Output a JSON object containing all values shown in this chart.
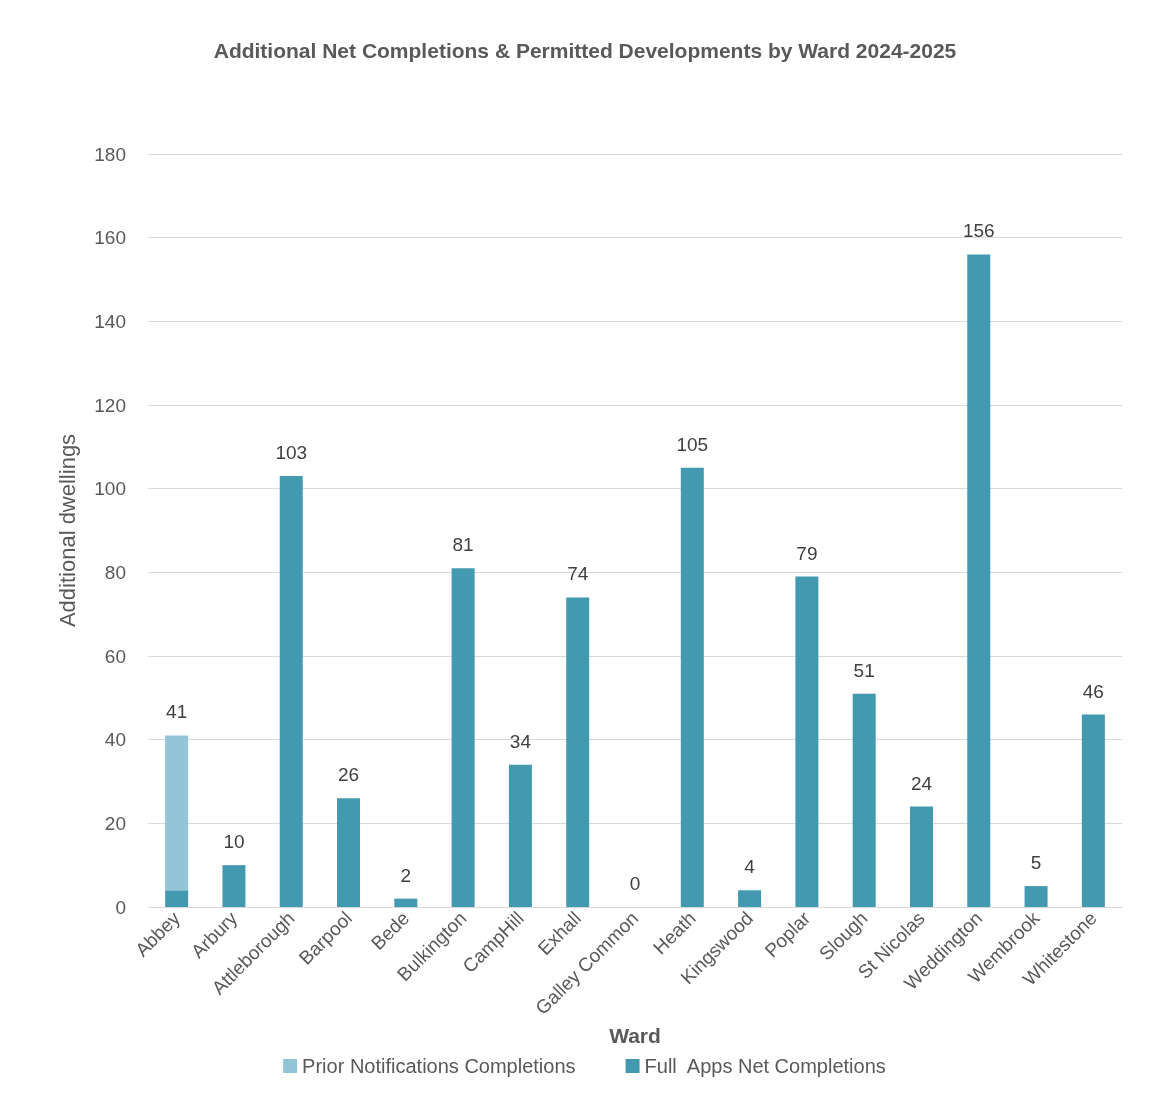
{
  "chart_data": {
    "type": "bar",
    "title": "Additional Net Completions & Permitted Developments by Ward 2024-2025",
    "xlabel": "Ward",
    "ylabel": "Additional dwellings",
    "categories": [
      "Abbey",
      "Arbury",
      "Attleborough",
      "Barpool",
      "Bede",
      "Bulkington",
      "CampHill",
      "Exhall",
      "Galley Common",
      "Heath",
      "Kingswood",
      "Poplar",
      "Slough",
      "St Nicolas",
      "Weddington",
      "Wembrook",
      "Whitestone"
    ],
    "stacked": true,
    "series": [
      {
        "name": "Full  Apps Net Completions",
        "color": "#4399b0",
        "values": [
          4,
          10,
          103,
          26,
          2,
          81,
          34,
          74,
          0,
          105,
          4,
          79,
          51,
          24,
          156,
          5,
          46
        ]
      },
      {
        "name": "Prior Notifications Completions",
        "color": "#92c5d6",
        "values": [
          37,
          0,
          0,
          0,
          0,
          0,
          0,
          0,
          0,
          0,
          0,
          0,
          0,
          0,
          0,
          0,
          0
        ]
      }
    ],
    "totals": [
      "41",
      "10",
      "103",
      "26",
      "2",
      "81",
      "34",
      "74",
      "0",
      "105",
      "4",
      "79",
      "51",
      "24",
      "156",
      "5",
      "46"
    ],
    "ylim": [
      0,
      180
    ],
    "yticks": [
      0,
      20,
      40,
      60,
      80,
      100,
      120,
      140,
      160,
      180
    ],
    "grid": "y",
    "legend": "bottom"
  }
}
